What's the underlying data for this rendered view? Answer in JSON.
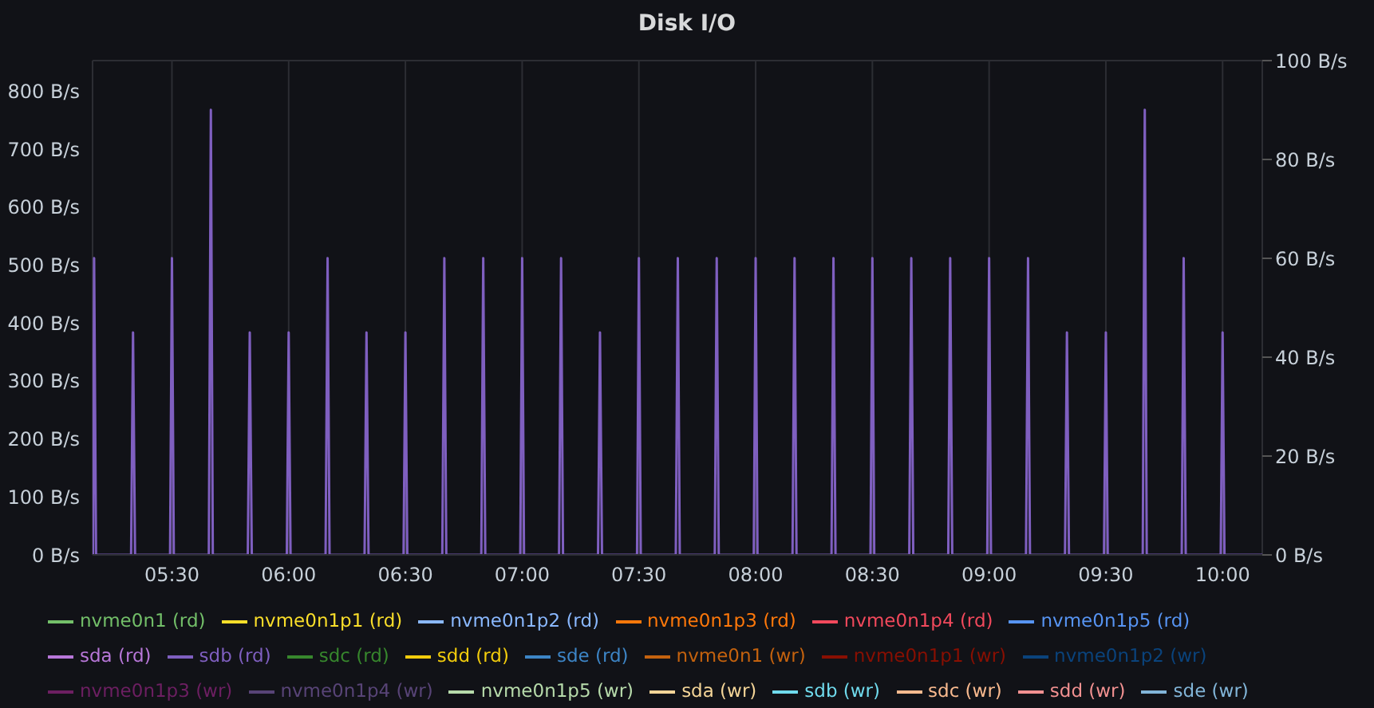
{
  "chart_data": {
    "type": "line",
    "title": "Disk I/O",
    "x": [
      5.16,
      5.162,
      5.1667,
      5.175,
      5.325,
      5.3333,
      5.342,
      5.492,
      5.5,
      5.508,
      5.658,
      5.6667,
      5.675,
      5.825,
      5.8333,
      5.842,
      5.992,
      6,
      6.008,
      6.158,
      6.1667,
      6.175,
      6.325,
      6.3333,
      6.342,
      6.492,
      6.5,
      6.508,
      6.658,
      6.6667,
      6.675,
      6.825,
      6.8333,
      6.842,
      6.992,
      7,
      7.008,
      7.158,
      7.1667,
      7.175,
      7.325,
      7.3333,
      7.342,
      7.492,
      7.5,
      7.508,
      7.658,
      7.6667,
      7.675,
      7.825,
      7.8333,
      7.842,
      7.992,
      8,
      8.008,
      8.158,
      8.1667,
      8.175,
      8.325,
      8.3333,
      8.342,
      8.492,
      8.5,
      8.508,
      8.658,
      8.6667,
      8.675,
      8.825,
      8.8333,
      8.842,
      8.992,
      9,
      9.008,
      9.158,
      9.1667,
      9.175,
      9.325,
      9.3333,
      9.342,
      9.492,
      9.5,
      9.508,
      9.658,
      9.6667,
      9.675,
      9.825,
      9.8333,
      9.842,
      9.992,
      10,
      10.008,
      10.17
    ],
    "xlim": [
      5.16,
      10.17
    ],
    "xticks": [
      {
        "value": 5.5,
        "label": "05:30"
      },
      {
        "value": 6,
        "label": "06:00"
      },
      {
        "value": 6.5,
        "label": "06:30"
      },
      {
        "value": 7,
        "label": "07:00"
      },
      {
        "value": 7.5,
        "label": "07:30"
      },
      {
        "value": 8,
        "label": "08:00"
      },
      {
        "value": 8.5,
        "label": "08:30"
      },
      {
        "value": 9,
        "label": "09:00"
      },
      {
        "value": 9.5,
        "label": "09:30"
      },
      {
        "value": 10,
        "label": "10:00"
      }
    ],
    "ylim": [
      0,
      853
    ],
    "yticks": [
      {
        "value": 0,
        "label": "0 B/s"
      },
      {
        "value": 100,
        "label": "100 B/s"
      },
      {
        "value": 200,
        "label": "200 B/s"
      },
      {
        "value": 300,
        "label": "300 B/s"
      },
      {
        "value": 400,
        "label": "400 B/s"
      },
      {
        "value": 500,
        "label": "500 B/s"
      },
      {
        "value": 600,
        "label": "600 B/s"
      },
      {
        "value": 700,
        "label": "700 B/s"
      },
      {
        "value": 800,
        "label": "800 B/s"
      }
    ],
    "y2lim": [
      0,
      100
    ],
    "y2ticks": [
      {
        "value": 0,
        "label": "0 B/s"
      },
      {
        "value": 20,
        "label": "20 B/s"
      },
      {
        "value": 40,
        "label": "40 B/s"
      },
      {
        "value": 60,
        "label": "60 B/s"
      },
      {
        "value": 80,
        "label": "80 B/s"
      },
      {
        "value": 100,
        "label": "100 B/s"
      }
    ],
    "grid": true,
    "legend": "bottom",
    "marker": "none",
    "line_style": "solid",
    "series": [
      {
        "name": "nvme0n1 (rd)",
        "color": "#73bf69",
        "values": [
          null,
          null,
          null,
          null,
          null,
          null,
          null,
          null,
          null,
          null,
          null,
          null,
          null,
          null,
          null,
          null,
          null,
          null,
          null,
          null,
          null,
          null,
          null,
          null,
          null,
          null,
          null,
          null,
          null,
          null,
          null,
          null,
          null,
          null,
          null,
          null,
          null,
          null,
          null,
          null,
          null,
          null,
          null,
          null,
          null,
          null,
          null,
          null,
          null,
          null,
          null,
          null,
          null,
          null,
          null,
          null,
          null,
          null,
          null,
          null,
          null,
          null,
          null,
          null,
          null,
          null,
          null,
          null,
          null,
          null,
          null,
          null,
          null,
          null,
          null,
          null,
          null,
          null,
          null,
          null,
          null,
          null,
          null,
          null,
          null,
          null,
          null,
          null,
          null,
          null,
          null,
          null
        ]
      },
      {
        "name": "nvme0n1p1 (rd)",
        "color": "#fade2a",
        "values": [
          null,
          null,
          null,
          null,
          null,
          null,
          null,
          null,
          null,
          null,
          null,
          null,
          null,
          null,
          null,
          null,
          null,
          null,
          null,
          null,
          null,
          null,
          null,
          null,
          null,
          null,
          null,
          null,
          null,
          null,
          null,
          null,
          null,
          null,
          null,
          null,
          null,
          null,
          null,
          null,
          null,
          null,
          null,
          null,
          null,
          null,
          null,
          null,
          null,
          null,
          null,
          null,
          null,
          null,
          null,
          null,
          null,
          null,
          null,
          null,
          null,
          null,
          null,
          null,
          null,
          null,
          null,
          null,
          null,
          null,
          null,
          null,
          null,
          null,
          null,
          null,
          null,
          null,
          null,
          null,
          null,
          null,
          null,
          null,
          null,
          null,
          null,
          null,
          null,
          null,
          null,
          null
        ]
      },
      {
        "name": "nvme0n1p2 (rd)",
        "color": "#8ab8ff",
        "values": [
          null,
          null,
          null,
          null,
          null,
          null,
          null,
          null,
          null,
          null,
          null,
          null,
          null,
          null,
          null,
          null,
          null,
          null,
          null,
          null,
          null,
          null,
          null,
          null,
          null,
          null,
          null,
          null,
          null,
          null,
          null,
          null,
          null,
          null,
          null,
          null,
          null,
          null,
          null,
          null,
          null,
          null,
          null,
          null,
          null,
          null,
          null,
          null,
          null,
          null,
          null,
          null,
          null,
          null,
          null,
          null,
          null,
          null,
          null,
          null,
          null,
          null,
          null,
          null,
          null,
          null,
          null,
          null,
          null,
          null,
          null,
          null,
          null,
          null,
          null,
          null,
          null,
          null,
          null,
          null,
          null,
          null,
          null,
          null,
          null,
          null,
          null,
          null,
          null,
          null,
          null,
          null
        ]
      },
      {
        "name": "nvme0n1p3 (rd)",
        "color": "#ff780a",
        "values": [
          null,
          null,
          null,
          null,
          null,
          null,
          null,
          null,
          null,
          null,
          null,
          null,
          null,
          null,
          null,
          null,
          null,
          null,
          null,
          null,
          null,
          null,
          null,
          null,
          null,
          null,
          null,
          null,
          null,
          null,
          null,
          null,
          null,
          null,
          null,
          null,
          null,
          null,
          null,
          null,
          null,
          null,
          null,
          null,
          null,
          null,
          null,
          null,
          null,
          null,
          null,
          null,
          null,
          null,
          null,
          null,
          null,
          null,
          null,
          null,
          null,
          null,
          null,
          null,
          null,
          null,
          null,
          null,
          null,
          null,
          null,
          null,
          null,
          null,
          null,
          null,
          null,
          null,
          null,
          null,
          null,
          null,
          null,
          null,
          null,
          null,
          null,
          null,
          null,
          null,
          null,
          null
        ]
      },
      {
        "name": "nvme0n1p4 (rd)",
        "color": "#f2495c",
        "values": [
          null,
          null,
          null,
          null,
          null,
          null,
          null,
          null,
          null,
          null,
          null,
          null,
          null,
          null,
          null,
          null,
          null,
          null,
          null,
          null,
          null,
          null,
          null,
          null,
          null,
          null,
          null,
          null,
          null,
          null,
          null,
          null,
          null,
          null,
          null,
          null,
          null,
          null,
          null,
          null,
          null,
          null,
          null,
          null,
          null,
          null,
          null,
          null,
          null,
          null,
          null,
          null,
          null,
          null,
          null,
          null,
          null,
          null,
          null,
          null,
          null,
          null,
          null,
          null,
          null,
          null,
          null,
          null,
          null,
          null,
          null,
          null,
          null,
          null,
          null,
          null,
          null,
          null,
          null,
          null,
          null,
          null,
          null,
          null,
          null,
          null,
          null,
          null,
          null,
          null,
          null,
          null
        ]
      },
      {
        "name": "nvme0n1p5 (rd)",
        "color": "#5794f2",
        "values": [
          null,
          null,
          null,
          null,
          null,
          null,
          null,
          null,
          null,
          null,
          null,
          null,
          null,
          null,
          null,
          null,
          null,
          null,
          null,
          null,
          null,
          null,
          null,
          null,
          null,
          null,
          null,
          null,
          null,
          null,
          null,
          null,
          null,
          null,
          null,
          null,
          null,
          null,
          null,
          null,
          null,
          null,
          null,
          null,
          null,
          null,
          null,
          null,
          null,
          null,
          null,
          null,
          null,
          null,
          null,
          null,
          null,
          null,
          null,
          null,
          null,
          null,
          null,
          null,
          null,
          null,
          null,
          null,
          null,
          null,
          null,
          null,
          null,
          null,
          null,
          null,
          null,
          null,
          null,
          null,
          null,
          null,
          null,
          null,
          null,
          null,
          null,
          null,
          null,
          null,
          null,
          null
        ]
      },
      {
        "name": "sda (rd)",
        "color": "#b877d9",
        "values": [
          null,
          null,
          null,
          null,
          null,
          null,
          null,
          null,
          null,
          null,
          null,
          null,
          null,
          null,
          null,
          null,
          null,
          null,
          null,
          null,
          null,
          null,
          null,
          null,
          null,
          null,
          null,
          null,
          null,
          null,
          null,
          null,
          null,
          null,
          null,
          null,
          null,
          null,
          null,
          null,
          null,
          null,
          null,
          null,
          null,
          null,
          null,
          null,
          null,
          null,
          null,
          null,
          null,
          null,
          null,
          null,
          null,
          null,
          null,
          null,
          null,
          null,
          null,
          null,
          null,
          null,
          null,
          null,
          null,
          null,
          null,
          null,
          null,
          null,
          null,
          null,
          null,
          null,
          null,
          null,
          null,
          null,
          null,
          null,
          null,
          null,
          null,
          null,
          null,
          null,
          null,
          null
        ]
      },
      {
        "name": "sdb (rd)",
        "color": "#7f5fc0",
        "values": [
          0,
          0,
          512,
          0,
          0,
          384,
          0,
          0,
          512,
          0,
          0,
          768,
          0,
          0,
          384,
          0,
          0,
          384,
          0,
          0,
          512,
          0,
          0,
          384,
          0,
          0,
          384,
          0,
          0,
          512,
          0,
          0,
          512,
          0,
          0,
          512,
          0,
          0,
          512,
          0,
          0,
          384,
          0,
          0,
          512,
          0,
          0,
          512,
          0,
          0,
          512,
          0,
          0,
          512,
          0,
          0,
          512,
          0,
          0,
          512,
          0,
          0,
          512,
          0,
          0,
          512,
          0,
          0,
          512,
          0,
          0,
          512,
          0,
          0,
          512,
          0,
          0,
          384,
          0,
          0,
          384,
          0,
          0,
          768,
          0,
          0,
          512,
          0,
          0,
          384,
          0,
          0
        ]
      },
      {
        "name": "sdc (rd)",
        "color": "#37872d",
        "values": [
          null,
          null,
          null,
          null,
          null,
          null,
          null,
          null,
          null,
          null,
          null,
          null,
          null,
          null,
          null,
          null,
          null,
          null,
          null,
          null,
          null,
          null,
          null,
          null,
          null,
          null,
          null,
          null,
          null,
          null,
          null,
          null,
          null,
          null,
          null,
          null,
          null,
          null,
          null,
          null,
          null,
          null,
          null,
          null,
          null,
          null,
          null,
          null,
          null,
          null,
          null,
          null,
          null,
          null,
          null,
          null,
          null,
          null,
          null,
          null,
          null,
          null,
          null,
          null,
          null,
          null,
          null,
          null,
          null,
          null,
          null,
          null,
          null,
          null,
          null,
          null,
          null,
          null,
          null,
          null,
          null,
          null,
          null,
          null,
          null,
          null,
          null,
          null,
          null,
          null,
          null,
          null
        ]
      },
      {
        "name": "sdd (rd)",
        "color": "#f2cc0c",
        "values": [
          null,
          null,
          null,
          null,
          null,
          null,
          null,
          null,
          null,
          null,
          null,
          null,
          null,
          null,
          null,
          null,
          null,
          null,
          null,
          null,
          null,
          null,
          null,
          null,
          null,
          null,
          null,
          null,
          null,
          null,
          null,
          null,
          null,
          null,
          null,
          null,
          null,
          null,
          null,
          null,
          null,
          null,
          null,
          null,
          null,
          null,
          null,
          null,
          null,
          null,
          null,
          null,
          null,
          null,
          null,
          null,
          null,
          null,
          null,
          null,
          null,
          null,
          null,
          null,
          null,
          null,
          null,
          null,
          null,
          null,
          null,
          null,
          null,
          null,
          null,
          null,
          null,
          null,
          null,
          null,
          null,
          null,
          null,
          null,
          null,
          null,
          null,
          null,
          null,
          null,
          null,
          null
        ]
      },
      {
        "name": "sde (rd)",
        "color": "#3d85c6",
        "values": [
          null,
          null,
          null,
          null,
          null,
          null,
          null,
          null,
          null,
          null,
          null,
          null,
          null,
          null,
          null,
          null,
          null,
          null,
          null,
          null,
          null,
          null,
          null,
          null,
          null,
          null,
          null,
          null,
          null,
          null,
          null,
          null,
          null,
          null,
          null,
          null,
          null,
          null,
          null,
          null,
          null,
          null,
          null,
          null,
          null,
          null,
          null,
          null,
          null,
          null,
          null,
          null,
          null,
          null,
          null,
          null,
          null,
          null,
          null,
          null,
          null,
          null,
          null,
          null,
          null,
          null,
          null,
          null,
          null,
          null,
          null,
          null,
          null,
          null,
          null,
          null,
          null,
          null,
          null,
          null,
          null,
          null,
          null,
          null,
          null,
          null,
          null,
          null,
          null,
          null,
          null,
          null
        ]
      },
      {
        "name": "nvme0n1 (wr)",
        "color": "#c4620e",
        "axis": "y2",
        "values": [
          null,
          null,
          null,
          null,
          null,
          null,
          null,
          null,
          null,
          null,
          null,
          null,
          null,
          null,
          null,
          null,
          null,
          null,
          null,
          null,
          null,
          null,
          null,
          null,
          null,
          null,
          null,
          null,
          null,
          null,
          null,
          null,
          null,
          null,
          null,
          null,
          null,
          null,
          null,
          null,
          null,
          null,
          null,
          null,
          null,
          null,
          null,
          null,
          null,
          null,
          null,
          null,
          null,
          null,
          null,
          null,
          null,
          null,
          null,
          null,
          null,
          null,
          null,
          null,
          null,
          null,
          null,
          null,
          null,
          null,
          null,
          null,
          null,
          null,
          null,
          null,
          null,
          null,
          null,
          null,
          null,
          null,
          null,
          null,
          null,
          null,
          null,
          null,
          null,
          null,
          null,
          null
        ]
      },
      {
        "name": "nvme0n1p1 (wr)",
        "color": "#890f02",
        "axis": "y2",
        "values": [
          null,
          null,
          null,
          null,
          null,
          null,
          null,
          null,
          null,
          null,
          null,
          null,
          null,
          null,
          null,
          null,
          null,
          null,
          null,
          null,
          null,
          null,
          null,
          null,
          null,
          null,
          null,
          null,
          null,
          null,
          null,
          null,
          null,
          null,
          null,
          null,
          null,
          null,
          null,
          null,
          null,
          null,
          null,
          null,
          null,
          null,
          null,
          null,
          null,
          null,
          null,
          null,
          null,
          null,
          null,
          null,
          null,
          null,
          null,
          null,
          null,
          null,
          null,
          null,
          null,
          null,
          null,
          null,
          null,
          null,
          null,
          null,
          null,
          null,
          null,
          null,
          null,
          null,
          null,
          null,
          null,
          null,
          null,
          null,
          null,
          null,
          null,
          null,
          null,
          null,
          null,
          null
        ]
      },
      {
        "name": "nvme0n1p2 (wr)",
        "color": "#0a437c",
        "axis": "y2",
        "values": [
          null,
          null,
          null,
          null,
          null,
          null,
          null,
          null,
          null,
          null,
          null,
          null,
          null,
          null,
          null,
          null,
          null,
          null,
          null,
          null,
          null,
          null,
          null,
          null,
          null,
          null,
          null,
          null,
          null,
          null,
          null,
          null,
          null,
          null,
          null,
          null,
          null,
          null,
          null,
          null,
          null,
          null,
          null,
          null,
          null,
          null,
          null,
          null,
          null,
          null,
          null,
          null,
          null,
          null,
          null,
          null,
          null,
          null,
          null,
          null,
          null,
          null,
          null,
          null,
          null,
          null,
          null,
          null,
          null,
          null,
          null,
          null,
          null,
          null,
          null,
          null,
          null,
          null,
          null,
          null,
          null,
          null,
          null,
          null,
          null,
          null,
          null,
          null,
          null,
          null,
          null,
          null
        ]
      },
      {
        "name": "nvme0n1p3 (wr)",
        "color": "#6d1f62",
        "axis": "y2",
        "values": [
          null,
          null,
          null,
          null,
          null,
          null,
          null,
          null,
          null,
          null,
          null,
          null,
          null,
          null,
          null,
          null,
          null,
          null,
          null,
          null,
          null,
          null,
          null,
          null,
          null,
          null,
          null,
          null,
          null,
          null,
          null,
          null,
          null,
          null,
          null,
          null,
          null,
          null,
          null,
          null,
          null,
          null,
          null,
          null,
          null,
          null,
          null,
          null,
          null,
          null,
          null,
          null,
          null,
          null,
          null,
          null,
          null,
          null,
          null,
          null,
          null,
          null,
          null,
          null,
          null,
          null,
          null,
          null,
          null,
          null,
          null,
          null,
          null,
          null,
          null,
          null,
          null,
          null,
          null,
          null,
          null,
          null,
          null,
          null,
          null,
          null,
          null,
          null,
          null,
          null,
          null,
          null
        ]
      },
      {
        "name": "nvme0n1p4 (wr)",
        "color": "#584477",
        "axis": "y2",
        "values": [
          null,
          null,
          null,
          null,
          null,
          null,
          null,
          null,
          null,
          null,
          null,
          null,
          null,
          null,
          null,
          null,
          null,
          null,
          null,
          null,
          null,
          null,
          null,
          null,
          null,
          null,
          null,
          null,
          null,
          null,
          null,
          null,
          null,
          null,
          null,
          null,
          null,
          null,
          null,
          null,
          null,
          null,
          null,
          null,
          null,
          null,
          null,
          null,
          null,
          null,
          null,
          null,
          null,
          null,
          null,
          null,
          null,
          null,
          null,
          null,
          null,
          null,
          null,
          null,
          null,
          null,
          null,
          null,
          null,
          null,
          null,
          null,
          null,
          null,
          null,
          null,
          null,
          null,
          null,
          null,
          null,
          null,
          null,
          null,
          null,
          null,
          null,
          null,
          null,
          null,
          null,
          null
        ]
      },
      {
        "name": "nvme0n1p5 (wr)",
        "color": "#b7dbab",
        "axis": "y2",
        "values": [
          null,
          null,
          null,
          null,
          null,
          null,
          null,
          null,
          null,
          null,
          null,
          null,
          null,
          null,
          null,
          null,
          null,
          null,
          null,
          null,
          null,
          null,
          null,
          null,
          null,
          null,
          null,
          null,
          null,
          null,
          null,
          null,
          null,
          null,
          null,
          null,
          null,
          null,
          null,
          null,
          null,
          null,
          null,
          null,
          null,
          null,
          null,
          null,
          null,
          null,
          null,
          null,
          null,
          null,
          null,
          null,
          null,
          null,
          null,
          null,
          null,
          null,
          null,
          null,
          null,
          null,
          null,
          null,
          null,
          null,
          null,
          null,
          null,
          null,
          null,
          null,
          null,
          null,
          null,
          null,
          null,
          null,
          null,
          null,
          null,
          null,
          null,
          null,
          null,
          null,
          null,
          null
        ]
      },
      {
        "name": "sda (wr)",
        "color": "#f4d598",
        "axis": "y2",
        "values": [
          null,
          null,
          null,
          null,
          null,
          null,
          null,
          null,
          null,
          null,
          null,
          null,
          null,
          null,
          null,
          null,
          null,
          null,
          null,
          null,
          null,
          null,
          null,
          null,
          null,
          null,
          null,
          null,
          null,
          null,
          null,
          null,
          null,
          null,
          null,
          null,
          null,
          null,
          null,
          null,
          null,
          null,
          null,
          null,
          null,
          null,
          null,
          null,
          null,
          null,
          null,
          null,
          null,
          null,
          null,
          null,
          null,
          null,
          null,
          null,
          null,
          null,
          null,
          null,
          null,
          null,
          null,
          null,
          null,
          null,
          null,
          null,
          null,
          null,
          null,
          null,
          null,
          null,
          null,
          null,
          null,
          null,
          null,
          null,
          null,
          null,
          null,
          null,
          null,
          null,
          null,
          null
        ]
      },
      {
        "name": "sdb (wr)",
        "color": "#70dbed",
        "axis": "y2",
        "values": [
          null,
          null,
          null,
          null,
          null,
          null,
          null,
          null,
          null,
          null,
          null,
          null,
          null,
          null,
          null,
          null,
          null,
          null,
          null,
          null,
          null,
          null,
          null,
          null,
          null,
          null,
          null,
          null,
          null,
          null,
          null,
          null,
          null,
          null,
          null,
          null,
          null,
          null,
          null,
          null,
          null,
          null,
          null,
          null,
          null,
          null,
          null,
          null,
          null,
          null,
          null,
          null,
          null,
          null,
          null,
          null,
          null,
          null,
          null,
          null,
          null,
          null,
          null,
          null,
          null,
          null,
          null,
          null,
          null,
          null,
          null,
          null,
          null,
          null,
          null,
          null,
          null,
          null,
          null,
          null,
          null,
          null,
          null,
          null,
          null,
          null,
          null,
          null,
          null,
          null,
          null,
          null
        ]
      },
      {
        "name": "sdc (wr)",
        "color": "#f9ba8f",
        "axis": "y2",
        "values": [
          null,
          null,
          null,
          null,
          null,
          null,
          null,
          null,
          null,
          null,
          null,
          null,
          null,
          null,
          null,
          null,
          null,
          null,
          null,
          null,
          null,
          null,
          null,
          null,
          null,
          null,
          null,
          null,
          null,
          null,
          null,
          null,
          null,
          null,
          null,
          null,
          null,
          null,
          null,
          null,
          null,
          null,
          null,
          null,
          null,
          null,
          null,
          null,
          null,
          null,
          null,
          null,
          null,
          null,
          null,
          null,
          null,
          null,
          null,
          null,
          null,
          null,
          null,
          null,
          null,
          null,
          null,
          null,
          null,
          null,
          null,
          null,
          null,
          null,
          null,
          null,
          null,
          null,
          null,
          null,
          null,
          null,
          null,
          null,
          null,
          null,
          null,
          null,
          null,
          null,
          null,
          null
        ]
      },
      {
        "name": "sdd (wr)",
        "color": "#f29191",
        "axis": "y2",
        "values": [
          null,
          null,
          null,
          null,
          null,
          null,
          null,
          null,
          null,
          null,
          null,
          null,
          null,
          null,
          null,
          null,
          null,
          null,
          null,
          null,
          null,
          null,
          null,
          null,
          null,
          null,
          null,
          null,
          null,
          null,
          null,
          null,
          null,
          null,
          null,
          null,
          null,
          null,
          null,
          null,
          null,
          null,
          null,
          null,
          null,
          null,
          null,
          null,
          null,
          null,
          null,
          null,
          null,
          null,
          null,
          null,
          null,
          null,
          null,
          null,
          null,
          null,
          null,
          null,
          null,
          null,
          null,
          null,
          null,
          null,
          null,
          null,
          null,
          null,
          null,
          null,
          null,
          null,
          null,
          null,
          null,
          null,
          null,
          null,
          null,
          null,
          null,
          null,
          null,
          null,
          null,
          null
        ]
      },
      {
        "name": "sde (wr)",
        "color": "#82b5d8",
        "axis": "y2",
        "values": [
          null,
          null,
          null,
          null,
          null,
          null,
          null,
          null,
          null,
          null,
          null,
          null,
          null,
          null,
          null,
          null,
          null,
          null,
          null,
          null,
          null,
          null,
          null,
          null,
          null,
          null,
          null,
          null,
          null,
          null,
          null,
          null,
          null,
          null,
          null,
          null,
          null,
          null,
          null,
          null,
          null,
          null,
          null,
          null,
          null,
          null,
          null,
          null,
          null,
          null,
          null,
          null,
          null,
          null,
          null,
          null,
          null,
          null,
          null,
          null,
          null,
          null,
          null,
          null,
          null,
          null,
          null,
          null,
          null,
          null,
          null,
          null,
          null,
          null,
          null,
          null,
          null,
          null,
          null,
          null,
          null,
          null,
          null,
          null,
          null,
          null,
          null,
          null,
          null,
          null,
          null,
          null
        ]
      }
    ]
  }
}
